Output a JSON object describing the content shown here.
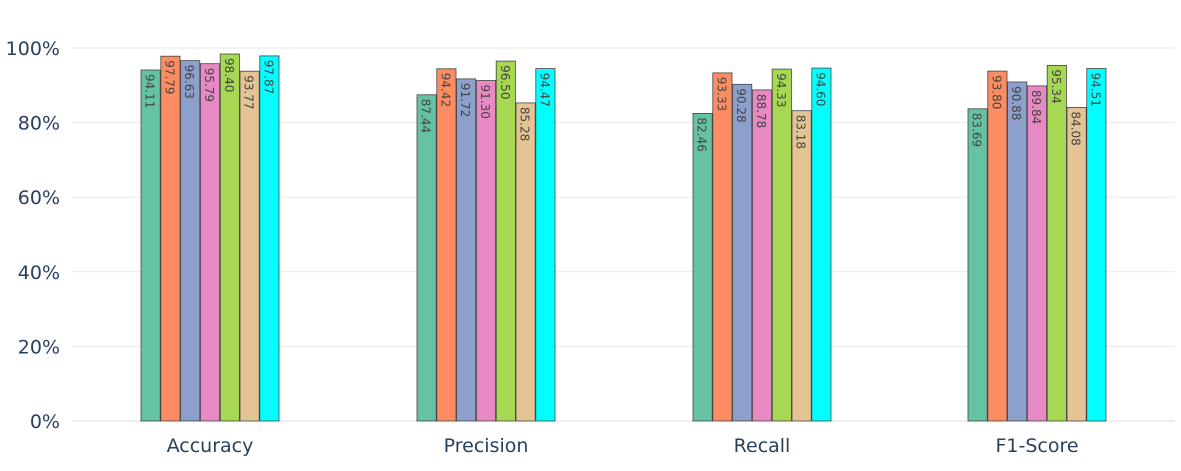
{
  "chart_data": {
    "type": "bar",
    "categories": [
      "Accuracy",
      "Precision",
      "Recall",
      "F1-Score"
    ],
    "series": [
      {
        "color": "#66c2a5",
        "values": [
          94.11,
          87.44,
          82.46,
          83.69
        ]
      },
      {
        "color": "#fc8d62",
        "values": [
          97.79,
          94.42,
          93.33,
          93.8
        ]
      },
      {
        "color": "#8da0cb",
        "values": [
          96.63,
          91.72,
          90.28,
          90.88
        ]
      },
      {
        "color": "#e78ac3",
        "values": [
          95.79,
          91.3,
          88.78,
          89.84
        ]
      },
      {
        "color": "#a6d854",
        "values": [
          98.4,
          96.5,
          94.33,
          95.34
        ]
      },
      {
        "color": "#e5c494",
        "values": [
          93.77,
          85.28,
          83.18,
          84.08
        ]
      },
      {
        "color": "#00ffff",
        "values": [
          97.87,
          94.47,
          94.6,
          94.51
        ]
      }
    ],
    "ylim": [
      0,
      100
    ],
    "yticks": [
      0,
      20,
      40,
      60,
      80,
      100
    ],
    "ytick_labels": [
      "0%",
      "20%",
      "40%",
      "60%",
      "80%",
      "100%"
    ],
    "title": "",
    "xlabel": "",
    "ylabel": "",
    "grid": true,
    "legend": "none",
    "colors": {
      "gridline": "#eaeaea",
      "axis_text": "#2a3f5f",
      "bar_outline": "#444444",
      "label_text": "#444444"
    }
  }
}
